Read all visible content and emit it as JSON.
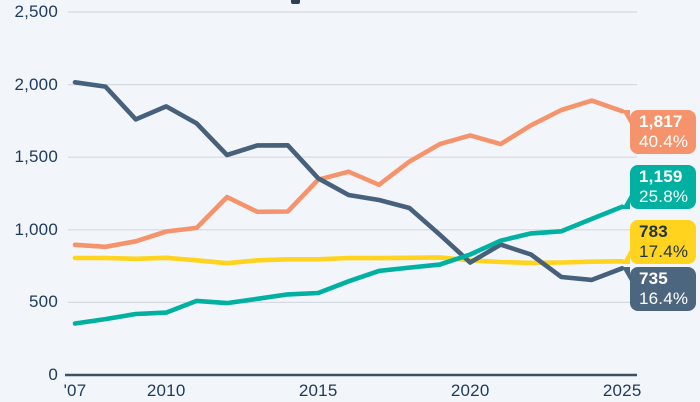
{
  "chart": {
    "background": "#F2F5F9",
    "grid_color": "#D5DAE1",
    "axis_color": "#3C5068",
    "tick_text_color": "#1E3A5C",
    "clipped_title_fragment_color": "#2F4155"
  },
  "chart_data": {
    "type": "line",
    "title": "",
    "x_years": [
      2007,
      2008,
      2009,
      2010,
      2011,
      2012,
      2013,
      2014,
      2015,
      2016,
      2017,
      2018,
      2019,
      2020,
      2021,
      2022,
      2023,
      2024,
      2025
    ],
    "x_tick_years": [
      2007,
      2010,
      2015,
      2020,
      2025
    ],
    "x_tick_labels": [
      "'07",
      "2010",
      "2015",
      "2020",
      "2025"
    ],
    "y_ticks": [
      0,
      500,
      1000,
      1500,
      2000,
      2500
    ],
    "y_tick_labels": [
      "0",
      "500",
      "1,000",
      "1,500",
      "2,000",
      "2,500"
    ],
    "ylim": [
      0,
      2500
    ],
    "grid": "horizontal-only",
    "legend": "none (end-of-line value tags on right)",
    "series": [
      {
        "name": "orange-series",
        "color": "#F5946C",
        "values": [
          897,
          883,
          921,
          988,
          1013,
          1225,
          1124,
          1126,
          1345,
          1400,
          1310,
          1470,
          1590,
          1650,
          1590,
          1720,
          1825,
          1890,
          1817
        ],
        "end_label": {
          "value_text": "1,817",
          "percent_text": "40.4%",
          "text_color": "#FFFFFF",
          "tail": "top"
        }
      },
      {
        "name": "yellow-series",
        "color": "#FFD31E",
        "values": [
          806,
          806,
          800,
          807,
          790,
          770,
          790,
          797,
          797,
          806,
          805,
          807,
          810,
          790,
          778,
          772,
          775,
          780,
          783
        ],
        "end_label": {
          "value_text": "783",
          "percent_text": "17.4%",
          "text_color": "#1F3247",
          "tail": "bottom"
        }
      },
      {
        "name": "navy-series",
        "color": "#47617C",
        "values": [
          2016,
          1986,
          1760,
          1850,
          1733,
          1515,
          1581,
          1582,
          1355,
          1240,
          1205,
          1150,
          966,
          775,
          898,
          830,
          675,
          655,
          735
        ],
        "end_label": {
          "value_text": "735",
          "percent_text": "16.4%",
          "text_color": "#FFFFFF",
          "tail": "top",
          "tag_color": "#4D6680"
        }
      },
      {
        "name": "teal-series",
        "color": "#00B1A1",
        "values": [
          355,
          385,
          420,
          430,
          510,
          495,
          525,
          555,
          565,
          645,
          717,
          740,
          760,
          830,
          925,
          975,
          990,
          1075,
          1159
        ],
        "end_label": {
          "value_text": "1,159",
          "percent_text": "25.8%",
          "text_color": "#FFFFFF",
          "tail": "bottom"
        }
      }
    ]
  }
}
